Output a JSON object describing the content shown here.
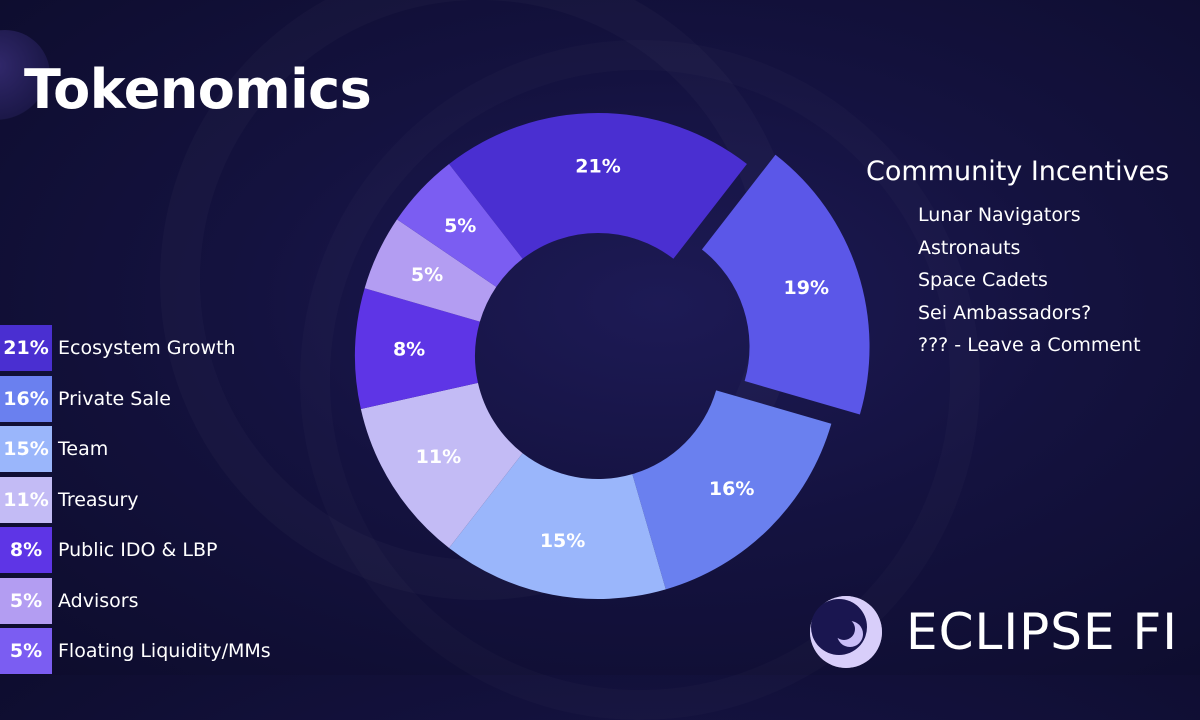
{
  "title": "Tokenomics",
  "chart_data": {
    "type": "pie",
    "title": "Tokenomics",
    "categories": [
      "Ecosystem Growth",
      "Private Sale",
      "Team",
      "Treasury",
      "Public IDO & LBP",
      "Advisors",
      "Floating Liquidity/MMs"
    ],
    "values": [
      21,
      16,
      15,
      11,
      8,
      5,
      5
    ],
    "extra_slices": [
      {
        "name": "Community Incentives",
        "value": 19
      }
    ],
    "unit": "%"
  },
  "legend": [
    {
      "pct": "21%",
      "label": "Ecosystem Growth",
      "color": "#4a2fd1"
    },
    {
      "pct": "16%",
      "label": "Private Sale",
      "color": "#6a80ef"
    },
    {
      "pct": "15%",
      "label": "Team",
      "color": "#9ab6fb"
    },
    {
      "pct": "11%",
      "label": "Treasury",
      "color": "#c3bbf5"
    },
    {
      "pct": "8%",
      "label": "Public IDO & LBP",
      "color": "#5e35e6"
    },
    {
      "pct": "5%",
      "label": "Advisors",
      "color": "#b39df2"
    },
    {
      "pct": "5%",
      "label": "Floating Liquidity/MMs",
      "color": "#7b5df2"
    }
  ],
  "slices": [
    {
      "name": "Ecosystem Growth",
      "value": 21,
      "label": "21%",
      "color": "#4a2fd1"
    },
    {
      "name": "Community Incentives",
      "value": 19,
      "label": "19%",
      "color": "#5b57e8"
    },
    {
      "name": "Private Sale",
      "value": 16,
      "label": "16%",
      "color": "#6a80ef"
    },
    {
      "name": "Team",
      "value": 15,
      "label": "15%",
      "color": "#9ab6fb"
    },
    {
      "name": "Treasury",
      "value": 11,
      "label": "11%",
      "color": "#c3bbf5"
    },
    {
      "name": "Public IDO & LBP",
      "value": 8,
      "label": "8%",
      "color": "#5e35e6"
    },
    {
      "name": "Advisors",
      "value": 5,
      "label": "5%",
      "color": "#b39df2"
    },
    {
      "name": "Floating Liquidity/MMs",
      "value": 5,
      "label": "5%",
      "color": "#7b5df2"
    }
  ],
  "community": {
    "title": "Community Incentives",
    "items": [
      "Lunar Navigators",
      "Astronauts",
      "Space Cadets",
      "Sei Ambassadors?",
      "??? - Leave a Comment"
    ]
  },
  "brand": {
    "name": "ECLIPSE FI",
    "logo_icon": "eclipse-logo-icon"
  }
}
